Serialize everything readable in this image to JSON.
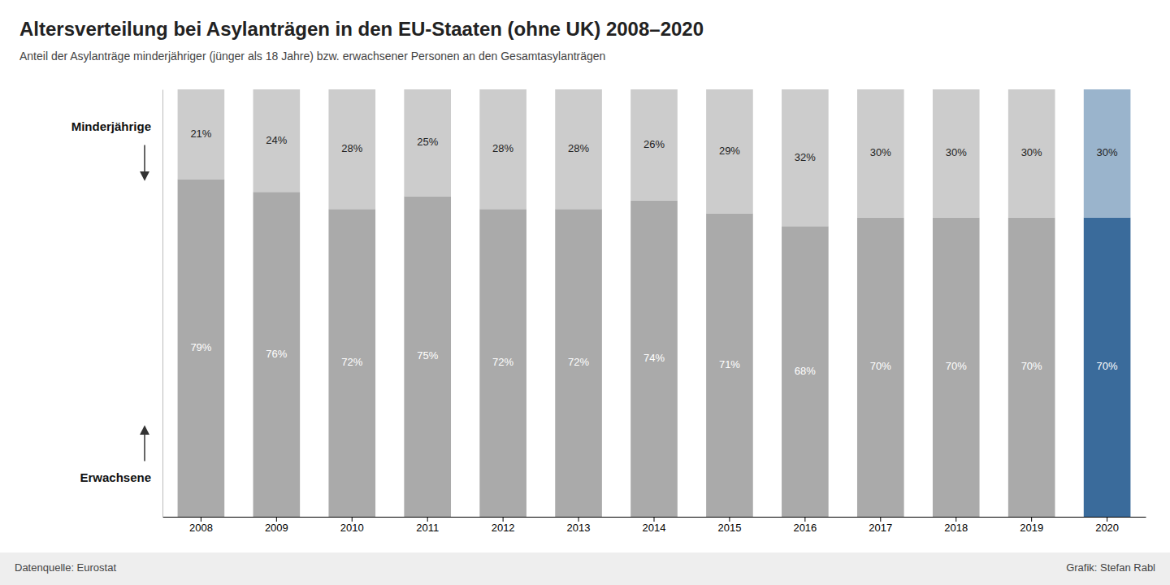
{
  "chart_data": {
    "type": "bar",
    "stacked": true,
    "title": "Altersverteilung bei Asylanträgen in den EU-Staaten (ohne UK) 2008–2020",
    "subtitle": "Anteil der Asylanträge minderjähriger (jünger als 18 Jahre) bzw. erwachsener Personen an den Gesamtasylanträgen",
    "categories": [
      "2008",
      "2009",
      "2010",
      "2011",
      "2012",
      "2013",
      "2014",
      "2015",
      "2016",
      "2017",
      "2018",
      "2019",
      "2020"
    ],
    "series": [
      {
        "name": "Erwachsene",
        "values": [
          79,
          76,
          72,
          75,
          72,
          72,
          74,
          71,
          68,
          70,
          70,
          70,
          70
        ],
        "value_labels": [
          "79%",
          "76%",
          "72%",
          "75%",
          "72%",
          "72%",
          "74%",
          "71%",
          "68%",
          "70%",
          "70%",
          "70%",
          "70%"
        ],
        "colors": [
          "#aaaaaa",
          "#aaaaaa",
          "#aaaaaa",
          "#aaaaaa",
          "#aaaaaa",
          "#aaaaaa",
          "#aaaaaa",
          "#aaaaaa",
          "#aaaaaa",
          "#aaaaaa",
          "#aaaaaa",
          "#aaaaaa",
          "#3a6b9b"
        ]
      },
      {
        "name": "Minderjährige",
        "values": [
          21,
          24,
          28,
          25,
          28,
          28,
          26,
          29,
          32,
          30,
          30,
          30,
          30
        ],
        "value_labels": [
          "21%",
          "24%",
          "28%",
          "25%",
          "28%",
          "28%",
          "26%",
          "29%",
          "32%",
          "30%",
          "30%",
          "30%",
          "30%"
        ],
        "colors": [
          "#cccccc",
          "#cccccc",
          "#cccccc",
          "#cccccc",
          "#cccccc",
          "#cccccc",
          "#cccccc",
          "#cccccc",
          "#cccccc",
          "#cccccc",
          "#cccccc",
          "#cccccc",
          "#9ab4cc"
        ]
      }
    ],
    "ylim": [
      0,
      100
    ],
    "tick_labels": "x",
    "data_labels": true,
    "grid": false,
    "annotations": [
      "Datenquelle: Eurostat",
      "Grafik: Stefan Rabl"
    ]
  }
}
